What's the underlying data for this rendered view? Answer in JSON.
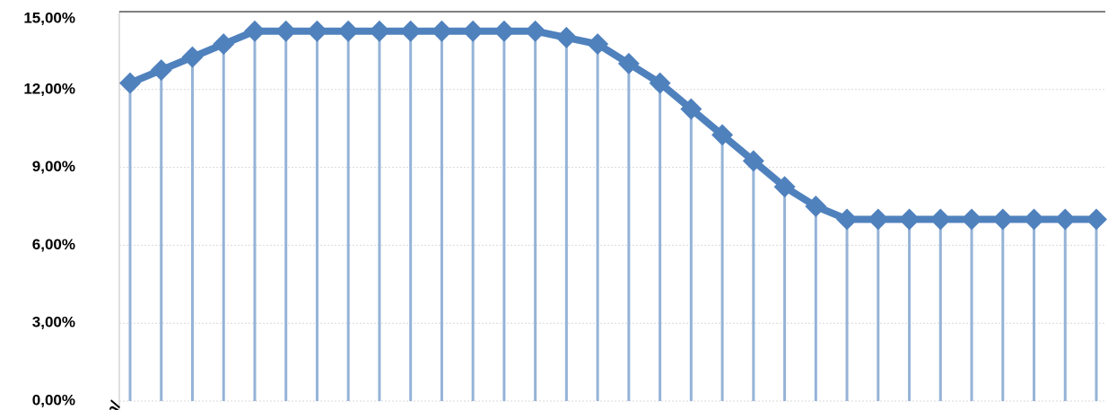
{
  "chart_data": {
    "type": "line",
    "categories": [
      "jan/",
      null,
      null,
      null,
      null,
      null,
      null,
      null,
      null,
      null,
      null,
      null,
      null,
      null,
      null,
      null,
      null,
      null,
      null,
      null,
      null,
      null,
      null,
      null,
      null,
      null,
      null,
      null,
      null,
      null,
      null,
      null
    ],
    "series": [
      {
        "color": "#4f81bd",
        "drop_line_color": "#95b3d7",
        "values": [
          12.25,
          12.75,
          13.25,
          13.75,
          14.25,
          14.25,
          14.25,
          14.25,
          14.25,
          14.25,
          14.25,
          14.25,
          14.25,
          14.25,
          14.0,
          13.75,
          13.0,
          12.25,
          11.25,
          10.25,
          9.25,
          8.25,
          7.5,
          7.0,
          7.0,
          7.0,
          7.0,
          7.0,
          7.0,
          7.0,
          7.0,
          7.0
        ]
      }
    ],
    "ylim": [
      0,
      15
    ],
    "yticks": [
      {
        "value": 15,
        "label": "15,00%"
      },
      {
        "value": 12,
        "label": "12,00%"
      },
      {
        "value": 9,
        "label": "9,00%"
      },
      {
        "value": 6,
        "label": "6,00%"
      },
      {
        "value": 3,
        "label": "3,00%"
      },
      {
        "value": 0,
        "label": "0,00%"
      }
    ],
    "grid": true
  }
}
